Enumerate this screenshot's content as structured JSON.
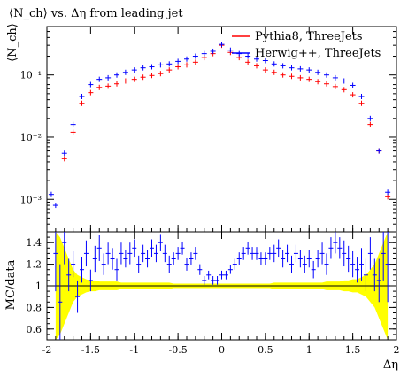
{
  "chart_data": [
    {
      "type": "scatter",
      "panel": "main",
      "title": "⟨N_ch⟩ vs. Δη from leading jet",
      "ylabel": "⟨N_ch⟩",
      "xlabel": "",
      "yscale": "log",
      "xlim": [
        -2,
        2
      ],
      "ylim": [
        0.0003,
        0.6
      ],
      "y_tick_labels": [
        "10⁻³",
        "10⁻²",
        "10⁻¹"
      ],
      "legend_position": "top-right",
      "series": [
        {
          "name": "Pythia8, ThreeJets",
          "color": "#ff0000",
          "x": [
            -1.8,
            -1.7,
            -1.6,
            -1.5,
            -1.4,
            -1.3,
            -1.2,
            -1.1,
            -1.0,
            -0.9,
            -0.8,
            -0.7,
            -0.6,
            -0.5,
            -0.4,
            -0.3,
            -0.2,
            -0.1,
            0.0,
            0.1,
            0.2,
            0.3,
            0.4,
            0.5,
            0.6,
            0.7,
            0.8,
            0.9,
            1.0,
            1.1,
            1.2,
            1.3,
            1.4,
            1.5,
            1.6,
            1.7,
            1.8,
            1.9
          ],
          "y": [
            0.0045,
            0.012,
            0.035,
            0.052,
            0.063,
            0.066,
            0.072,
            0.08,
            0.085,
            0.092,
            0.098,
            0.105,
            0.12,
            0.135,
            0.145,
            0.16,
            0.19,
            0.22,
            0.3,
            0.23,
            0.19,
            0.16,
            0.14,
            0.12,
            0.11,
            0.1,
            0.095,
            0.09,
            0.085,
            0.078,
            0.072,
            0.065,
            0.058,
            0.048,
            0.035,
            0.016,
            0.006,
            0.0011
          ]
        },
        {
          "name": "Herwig++, ThreeJets",
          "color": "#0000ff",
          "x": [
            -1.95,
            -1.9,
            -1.8,
            -1.7,
            -1.6,
            -1.5,
            -1.4,
            -1.3,
            -1.2,
            -1.1,
            -1.0,
            -0.9,
            -0.8,
            -0.7,
            -0.6,
            -0.5,
            -0.4,
            -0.3,
            -0.2,
            -0.1,
            0.0,
            0.1,
            0.2,
            0.3,
            0.4,
            0.5,
            0.6,
            0.7,
            0.8,
            0.9,
            1.0,
            1.1,
            1.2,
            1.3,
            1.4,
            1.5,
            1.6,
            1.7,
            1.8,
            1.9
          ],
          "y": [
            0.0012,
            0.0008,
            0.0055,
            0.016,
            0.045,
            0.07,
            0.085,
            0.09,
            0.1,
            0.11,
            0.12,
            0.13,
            0.135,
            0.145,
            0.15,
            0.165,
            0.18,
            0.2,
            0.22,
            0.24,
            0.31,
            0.25,
            0.22,
            0.2,
            0.18,
            0.17,
            0.15,
            0.14,
            0.13,
            0.125,
            0.12,
            0.11,
            0.1,
            0.09,
            0.08,
            0.068,
            0.045,
            0.02,
            0.006,
            0.0013
          ]
        }
      ]
    },
    {
      "type": "scatter",
      "panel": "ratio",
      "ylabel": "MC/data",
      "xlabel": "Δη",
      "xlim": [
        -2,
        2
      ],
      "ylim": [
        0.5,
        1.5
      ],
      "x_tick_labels": [
        "-2",
        "-1.5",
        "-1",
        "-0.5",
        "0",
        "0.5",
        "1",
        "1.5",
        "2"
      ],
      "y_tick_labels": [
        "0.6",
        "0.8",
        "1",
        "1.2",
        "1.4"
      ],
      "reference_band_color": "#ffff00",
      "series": [
        {
          "name": "Herwig++, ThreeJets",
          "color": "#0000ff",
          "x": [
            -1.9,
            -1.85,
            -1.8,
            -1.75,
            -1.7,
            -1.65,
            -1.6,
            -1.55,
            -1.5,
            -1.45,
            -1.4,
            -1.35,
            -1.3,
            -1.25,
            -1.2,
            -1.15,
            -1.1,
            -1.05,
            -1.0,
            -0.95,
            -0.9,
            -0.85,
            -0.8,
            -0.75,
            -0.7,
            -0.65,
            -0.6,
            -0.55,
            -0.5,
            -0.45,
            -0.4,
            -0.35,
            -0.3,
            -0.25,
            -0.2,
            -0.15,
            -0.1,
            -0.05,
            0.0,
            0.05,
            0.1,
            0.15,
            0.2,
            0.25,
            0.3,
            0.35,
            0.4,
            0.45,
            0.5,
            0.55,
            0.6,
            0.65,
            0.7,
            0.75,
            0.8,
            0.85,
            0.9,
            0.95,
            1.0,
            1.05,
            1.1,
            1.15,
            1.2,
            1.25,
            1.3,
            1.35,
            1.4,
            1.45,
            1.5,
            1.55,
            1.6,
            1.65,
            1.7,
            1.75,
            1.8,
            1.85,
            1.9
          ],
          "y": [
            1.3,
            0.85,
            1.4,
            1.1,
            1.2,
            0.9,
            1.15,
            1.3,
            1.05,
            1.25,
            1.35,
            1.2,
            1.3,
            1.25,
            1.15,
            1.3,
            1.25,
            1.3,
            1.35,
            1.2,
            1.3,
            1.25,
            1.35,
            1.3,
            1.4,
            1.3,
            1.2,
            1.25,
            1.3,
            1.35,
            1.2,
            1.25,
            1.3,
            1.15,
            1.05,
            1.1,
            1.05,
            1.05,
            1.1,
            1.1,
            1.15,
            1.2,
            1.25,
            1.3,
            1.35,
            1.3,
            1.3,
            1.25,
            1.25,
            1.3,
            1.3,
            1.35,
            1.25,
            1.3,
            1.2,
            1.3,
            1.25,
            1.2,
            1.25,
            1.15,
            1.25,
            1.3,
            1.2,
            1.35,
            1.4,
            1.35,
            1.3,
            1.25,
            1.2,
            1.15,
            1.2,
            1.1,
            1.3,
            1.1,
            1.05,
            1.3,
            1.2
          ],
          "yerr": [
            0.35,
            0.35,
            0.2,
            0.15,
            0.12,
            0.15,
            0.12,
            0.12,
            0.1,
            0.12,
            0.12,
            0.1,
            0.1,
            0.1,
            0.1,
            0.1,
            0.08,
            0.1,
            0.08,
            0.08,
            0.08,
            0.08,
            0.08,
            0.08,
            0.08,
            0.08,
            0.08,
            0.06,
            0.06,
            0.06,
            0.06,
            0.06,
            0.06,
            0.05,
            0.04,
            0.04,
            0.04,
            0.04,
            0.04,
            0.04,
            0.04,
            0.05,
            0.06,
            0.06,
            0.06,
            0.06,
            0.06,
            0.06,
            0.06,
            0.06,
            0.08,
            0.08,
            0.08,
            0.08,
            0.08,
            0.08,
            0.08,
            0.08,
            0.08,
            0.08,
            0.08,
            0.1,
            0.1,
            0.1,
            0.1,
            0.1,
            0.12,
            0.12,
            0.12,
            0.12,
            0.15,
            0.15,
            0.15,
            0.15,
            0.2,
            0.25,
            0.35
          ],
          "band_halfwidth": [
            0.5,
            0.45,
            0.35,
            0.25,
            0.15,
            0.1,
            0.08,
            0.06,
            0.05,
            0.05,
            0.04,
            0.04,
            0.04,
            0.04,
            0.04,
            0.03,
            0.03,
            0.03,
            0.03,
            0.03,
            0.03,
            0.03,
            0.03,
            0.03,
            0.03,
            0.03,
            0.03,
            0.02,
            0.02,
            0.02,
            0.02,
            0.02,
            0.02,
            0.02,
            0.02,
            0.02,
            0.02,
            0.02,
            0.02,
            0.02,
            0.02,
            0.02,
            0.02,
            0.02,
            0.02,
            0.02,
            0.02,
            0.02,
            0.02,
            0.02,
            0.03,
            0.03,
            0.03,
            0.03,
            0.03,
            0.03,
            0.03,
            0.03,
            0.03,
            0.03,
            0.03,
            0.03,
            0.04,
            0.04,
            0.04,
            0.04,
            0.05,
            0.05,
            0.06,
            0.06,
            0.08,
            0.1,
            0.15,
            0.2,
            0.3,
            0.4,
            0.5
          ]
        }
      ]
    }
  ]
}
